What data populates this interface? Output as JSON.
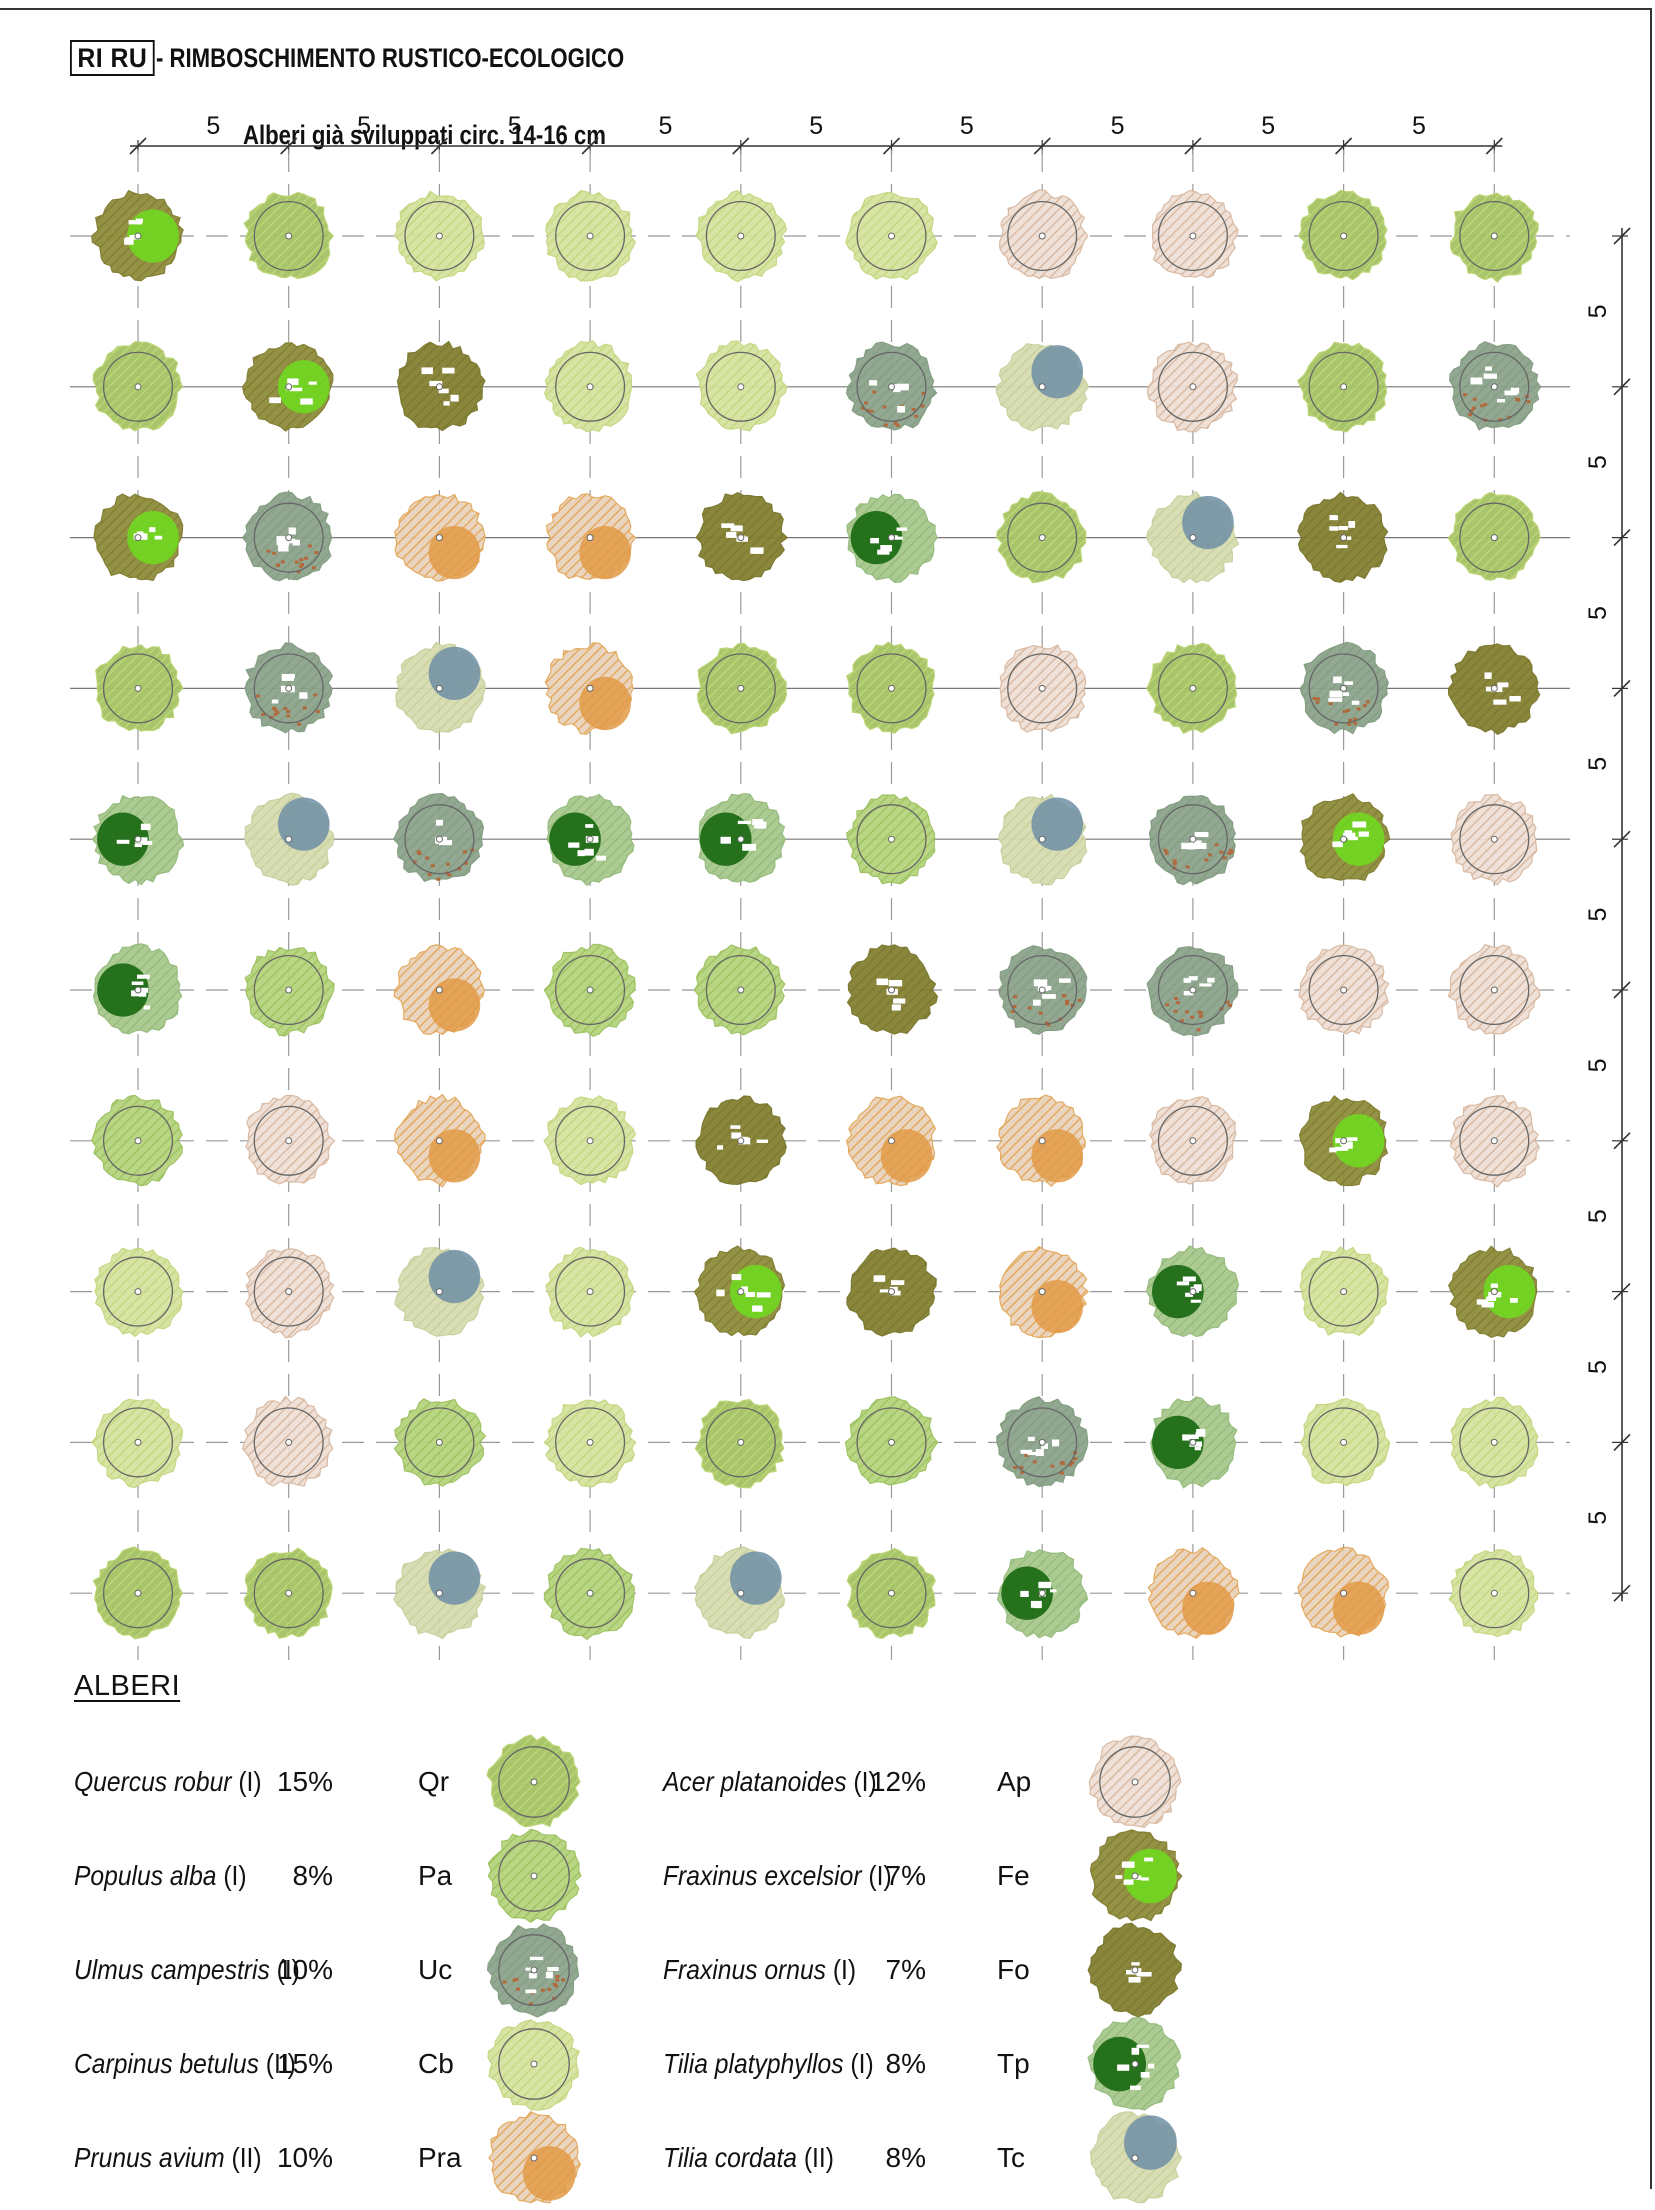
{
  "header": {
    "code": "RI RU",
    "title": "- RIMBOSCHIMENTO RUSTICO-ECOLOGICO",
    "subtitle": "Alberi già sviluppati circ. 14-16 cm"
  },
  "dimensions": {
    "column_spacings": [
      "5",
      "5",
      "5",
      "5",
      "5",
      "5",
      "5",
      "5",
      "5"
    ],
    "row_spacings": [
      "5",
      "5",
      "5",
      "5",
      "5",
      "5",
      "5",
      "5",
      "5"
    ]
  },
  "plan": {
    "rows": [
      [
        "Fe",
        "Qr",
        "Cb",
        "Cb",
        "Cb",
        "Cb",
        "Ap",
        "Ap",
        "Qr",
        "Qr"
      ],
      [
        "Qr",
        "Fe",
        "Fo",
        "Cb",
        "Cb",
        "Uc",
        "Tc",
        "Ap",
        "Qr",
        "Uc"
      ],
      [
        "Fe",
        "Uc",
        "Pra",
        "Pra",
        "Fo",
        "Tp",
        "Qr",
        "Tc",
        "Fo",
        "Qr"
      ],
      [
        "Qr",
        "Uc",
        "Tc",
        "Pra",
        "Qr",
        "Qr",
        "Ap",
        "Qr",
        "Uc",
        "Fo"
      ],
      [
        "Tp",
        "Tc",
        "Uc",
        "Tp",
        "Tp",
        "Pa",
        "Tc",
        "Uc",
        "Fe",
        "Ap"
      ],
      [
        "Tp",
        "Pa",
        "Pra",
        "Pa",
        "Pa",
        "Fo",
        "Uc",
        "Uc",
        "Ap",
        "Ap"
      ],
      [
        "Pa",
        "Ap",
        "Pra",
        "Cb",
        "Fo",
        "Pra",
        "Pra",
        "Ap",
        "Fe",
        "Ap"
      ],
      [
        "Cb",
        "Ap",
        "Tc",
        "Cb",
        "Fe",
        "Fo",
        "Pra",
        "Tp",
        "Cb",
        "Fe"
      ],
      [
        "Cb",
        "Ap",
        "Pa",
        "Cb",
        "Qr",
        "Pa",
        "Uc",
        "Tp",
        "Cb",
        "Cb"
      ],
      [
        "Qr",
        "Qr",
        "Tc",
        "Pa",
        "Tc",
        "Qr",
        "Tp",
        "Pra",
        "Pra",
        "Cb"
      ]
    ]
  },
  "legend": {
    "title": "ALBERI",
    "items": [
      {
        "code": "Qr",
        "name": "Quercus robur",
        "cls": "(I)",
        "pct": "15%"
      },
      {
        "code": "Pa",
        "name": "Populus alba",
        "cls": "(I)",
        "pct": "8%"
      },
      {
        "code": "Uc",
        "name": "Ulmus campestris",
        "cls": "(I)",
        "pct": "10%"
      },
      {
        "code": "Cb",
        "name": "Carpinus betulus",
        "cls": "(II)",
        "pct": "15%"
      },
      {
        "code": "Pra",
        "name": "Prunus avium",
        "cls": "(II)",
        "pct": "10%"
      },
      {
        "code": "Ap",
        "name": "Acer platanoides",
        "cls": "(I)",
        "pct": "12%"
      },
      {
        "code": "Fe",
        "name": "Fraxinus excelsior",
        "cls": "(I)",
        "pct": "7%"
      },
      {
        "code": "Fo",
        "name": "Fraxinus ornus",
        "cls": "(I)",
        "pct": "7%"
      },
      {
        "code": "Tp",
        "name": "Tilia platyphyllos",
        "cls": "(I)",
        "pct": "8%"
      },
      {
        "code": "Tc",
        "name": "Tilia cordata",
        "cls": "(II)",
        "pct": "8%"
      }
    ]
  },
  "species_styles": {
    "Qr": {
      "base": "#a4c264",
      "accent": "#b9d36f",
      "spot": "",
      "spot_side": "",
      "ring": true
    },
    "Pa": {
      "base": "#b6d47e",
      "accent": "#9bc05c",
      "spot": "",
      "spot_side": "",
      "ring": true
    },
    "Uc": {
      "base": "#8ea48d",
      "accent": "#7f9a7c",
      "spot": "#b06a3e",
      "spot_side": "bottom",
      "ring": true
    },
    "Cb": {
      "base": "#d6e3a0",
      "accent": "#c3d67d",
      "spot": "",
      "spot_side": "",
      "ring": true
    },
    "Pra": {
      "base": "#e8d3bd",
      "accent": "#e3a657",
      "spot": "#e29a45",
      "spot_side": "bottom-right",
      "ring": false
    },
    "Ap": {
      "base": "#efdfd6",
      "accent": "#d8b8a0",
      "spot": "",
      "spot_side": "",
      "ring": true
    },
    "Fe": {
      "base": "#8f8d3a",
      "accent": "#7e7a2c",
      "spot": "#6edd1f",
      "spot_side": "right",
      "ring": false
    },
    "Fo": {
      "base": "#848032",
      "accent": "#777328",
      "spot": "",
      "spot_side": "",
      "ring": false
    },
    "Tp": {
      "base": "#a8c98d",
      "accent": "#93b979",
      "spot": "#1e6b16",
      "spot_side": "left",
      "ring": false
    },
    "Tc": {
      "base": "#d8dcb0",
      "accent": "#c6cf9a",
      "spot": "#6f8fa6",
      "spot_side": "top-right",
      "ring": false
    }
  }
}
